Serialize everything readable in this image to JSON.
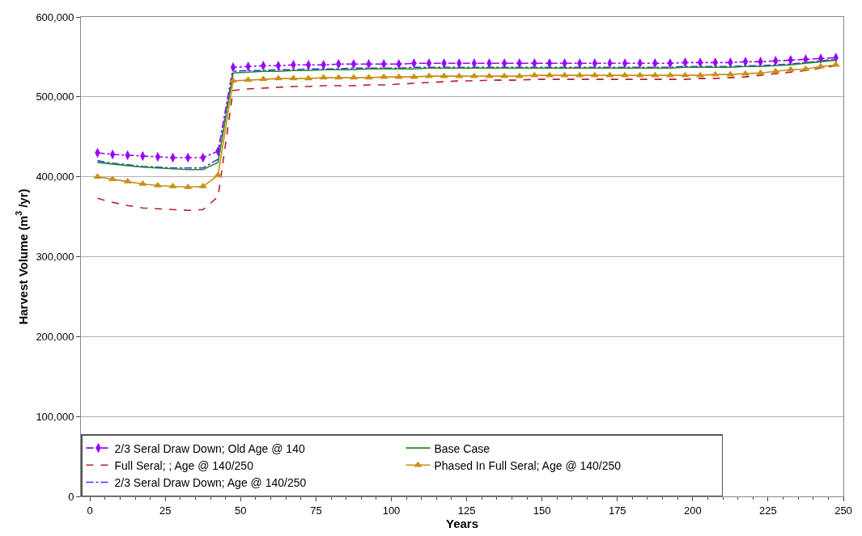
{
  "chart_data": {
    "type": "line",
    "xlabel": "Years",
    "ylabel": "Harvest Volume (m$^{3}$ /yr)",
    "x": [
      2.5,
      7.5,
      12.5,
      17.5,
      22.5,
      27.5,
      32.5,
      37.5,
      42.5,
      47.5,
      52.5,
      57.5,
      62.5,
      67.5,
      72.5,
      77.5,
      82.5,
      87.5,
      92.5,
      97.5,
      102.5,
      107.5,
      112.5,
      117.5,
      122.5,
      127.5,
      132.5,
      137.5,
      142.5,
      147.5,
      152.5,
      157.5,
      162.5,
      167.5,
      172.5,
      177.5,
      182.5,
      187.5,
      192.5,
      197.5,
      202.5,
      207.5,
      212.5,
      217.5,
      222.5,
      227.5,
      232.5,
      237.5,
      242.5,
      247.5
    ],
    "series": [
      {
        "name": "2/3 Seral Draw Down; Old Age @ 140",
        "color": "#9900ff",
        "marker": "diamond",
        "line_style": "dashdot",
        "values": [
          430000,
          428000,
          427000,
          426000,
          425000,
          424000,
          424000,
          424000,
          432000,
          537000,
          538000,
          539000,
          539000,
          540000,
          540000,
          540000,
          541000,
          541000,
          541000,
          541000,
          541000,
          542000,
          542000,
          542000,
          542000,
          542000,
          542000,
          542000,
          542000,
          542000,
          542000,
          542000,
          542000,
          542000,
          542000,
          542000,
          542000,
          542000,
          542000,
          543000,
          543000,
          543000,
          543000,
          544000,
          544000,
          545000,
          546000,
          547000,
          548000,
          549000
        ]
      },
      {
        "name": "Full Seral; ; Age @ 140/250",
        "color": "#b22222",
        "marker": "none",
        "line_style": "dashed",
        "values": [
          373000,
          368000,
          364000,
          361000,
          360000,
          359000,
          358000,
          359000,
          375000,
          508000,
          510000,
          511000,
          512000,
          513000,
          513000,
          514000,
          514000,
          514000,
          515000,
          515000,
          516000,
          517000,
          518000,
          519000,
          520000,
          520000,
          521000,
          521000,
          521000,
          522000,
          522000,
          522000,
          522000,
          522000,
          522000,
          522000,
          522000,
          522000,
          522000,
          522000,
          523000,
          523000,
          524000,
          525000,
          527000,
          529000,
          531000,
          533000,
          536000,
          539000
        ]
      },
      {
        "name": "2/3 Seral Draw Down; Age @ 140/250",
        "color": "#3333ff",
        "marker": "none",
        "line_style": "dashdot",
        "values": [
          420000,
          417000,
          415000,
          413000,
          412000,
          411000,
          411000,
          411000,
          422000,
          532000,
          533000,
          533000,
          534000,
          534000,
          535000,
          535000,
          535000,
          536000,
          536000,
          536000,
          536000,
          537000,
          537000,
          537000,
          537000,
          537000,
          537000,
          537000,
          537000,
          537000,
          537000,
          537000,
          537000,
          537000,
          537000,
          537000,
          537000,
          537000,
          537000,
          538000,
          538000,
          538000,
          538000,
          539000,
          539000,
          540000,
          541000,
          543000,
          545000,
          547000
        ]
      },
      {
        "name": "Base Case",
        "color": "#228b22",
        "marker": "none",
        "line_style": "solid",
        "values": [
          418000,
          416000,
          414000,
          412000,
          411000,
          410000,
          409000,
          409000,
          418000,
          530000,
          531000,
          532000,
          532000,
          533000,
          533000,
          534000,
          534000,
          534000,
          535000,
          535000,
          535000,
          535000,
          536000,
          536000,
          536000,
          536000,
          536000,
          536000,
          536000,
          536000,
          536000,
          536000,
          536000,
          536000,
          536000,
          536000,
          536000,
          536000,
          536000,
          537000,
          537000,
          537000,
          537000,
          538000,
          538000,
          539000,
          540000,
          542000,
          544000,
          546000
        ]
      },
      {
        "name": "Phased In Full Seral; Age @ 140/250",
        "color": "#c8901a",
        "marker": "triangle",
        "line_style": "solid",
        "values": [
          400000,
          397000,
          394000,
          391000,
          389000,
          388000,
          387000,
          388000,
          402000,
          520000,
          521000,
          522000,
          523000,
          523000,
          523000,
          524000,
          524000,
          524000,
          524000,
          525000,
          525000,
          525000,
          526000,
          526000,
          526000,
          526000,
          526000,
          526000,
          526000,
          527000,
          527000,
          527000,
          527000,
          527000,
          527000,
          527000,
          527000,
          527000,
          527000,
          527000,
          527000,
          528000,
          528000,
          529000,
          530000,
          532000,
          534000,
          535000,
          538000,
          540000
        ]
      }
    ],
    "xlim": [
      -3,
      250
    ],
    "xticks": [
      0,
      25,
      50,
      75,
      100,
      125,
      150,
      175,
      200,
      225,
      250
    ],
    "ylim": [
      0,
      600000
    ],
    "yticks": [
      {
        "value": 0,
        "label": "0"
      },
      {
        "value": 100000,
        "label": "100,000"
      },
      {
        "value": 200000,
        "label": "200,000"
      },
      {
        "value": 300000,
        "label": "300,000"
      },
      {
        "value": 400000,
        "label": "400,000"
      },
      {
        "value": 500000,
        "label": "500,000"
      },
      {
        "value": 600000,
        "label": "600,000"
      }
    ],
    "grid": "y",
    "legend": "bottom left"
  }
}
